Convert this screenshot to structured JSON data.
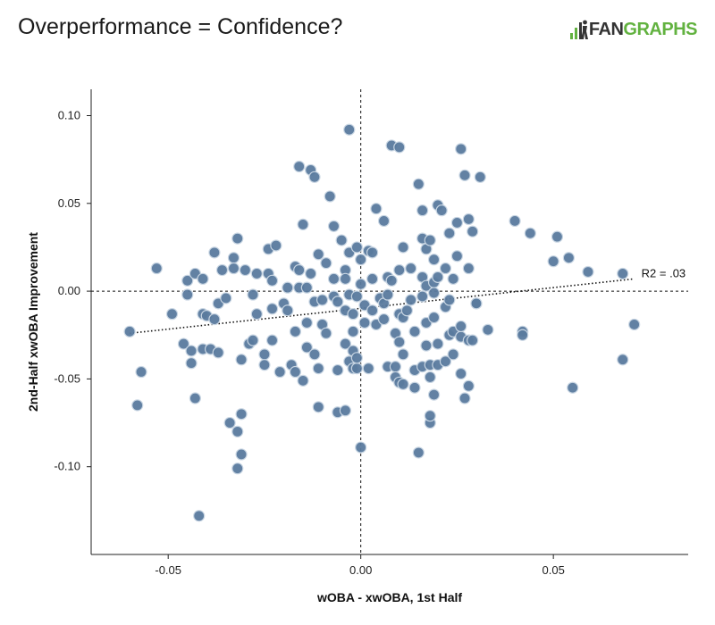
{
  "header": {
    "title": "Overperformance = Confidence?",
    "logo": {
      "prefix": "FAN",
      "suffix": "GRAPHS",
      "prefix_color": "#333333",
      "suffix_color": "#62b240",
      "icon": "fangraphs-bars-icon"
    }
  },
  "colors": {
    "point_fill": "#5a7a9e",
    "point_stroke": "#c9d6e3",
    "axis": "#222222"
  },
  "chart_data": {
    "type": "scatter",
    "title": "Overperformance = Confidence?",
    "xlabel": "wOBA - xwOBA, 1st Half",
    "ylabel": "2nd-Half xwOBA Improvement",
    "xlim": [
      -0.07,
      0.085
    ],
    "ylim": [
      -0.15,
      0.115
    ],
    "xticks": [
      -0.05,
      0.0,
      0.05
    ],
    "xtick_labels": [
      "-0.05",
      "0.00",
      "0.05"
    ],
    "yticks": [
      -0.1,
      -0.05,
      0.0,
      0.05,
      0.1
    ],
    "ytick_labels": [
      "-0.10",
      "-0.05",
      "0.00",
      "0.05",
      "0.10"
    ],
    "grid": false,
    "reference_lines": [
      {
        "axis": "x",
        "value": 0.0,
        "style": "dashed"
      },
      {
        "axis": "y",
        "value": 0.0,
        "style": "dashed"
      }
    ],
    "trendline": {
      "x": [
        -0.06,
        0.071
      ],
      "y": [
        -0.024,
        0.007
      ],
      "style": "dotted",
      "label": "R2 = .03"
    },
    "points": [
      [
        -0.06,
        -0.023
      ],
      [
        -0.057,
        -0.046
      ],
      [
        -0.058,
        -0.065
      ],
      [
        -0.053,
        0.013
      ],
      [
        -0.049,
        -0.013
      ],
      [
        -0.046,
        -0.03
      ],
      [
        -0.045,
        0.006
      ],
      [
        -0.045,
        -0.002
      ],
      [
        -0.044,
        -0.034
      ],
      [
        -0.044,
        -0.041
      ],
      [
        -0.043,
        0.01
      ],
      [
        -0.043,
        -0.061
      ],
      [
        -0.042,
        -0.128
      ],
      [
        -0.041,
        0.007
      ],
      [
        -0.041,
        -0.033
      ],
      [
        -0.041,
        -0.013
      ],
      [
        -0.04,
        -0.014
      ],
      [
        -0.039,
        -0.033
      ],
      [
        -0.038,
        0.022
      ],
      [
        -0.038,
        -0.016
      ],
      [
        -0.037,
        -0.035
      ],
      [
        -0.037,
        -0.007
      ],
      [
        -0.036,
        0.012
      ],
      [
        -0.035,
        -0.004
      ],
      [
        -0.034,
        -0.075
      ],
      [
        -0.033,
        0.019
      ],
      [
        -0.033,
        0.013
      ],
      [
        -0.032,
        0.03
      ],
      [
        -0.032,
        -0.08
      ],
      [
        -0.032,
        -0.101
      ],
      [
        -0.031,
        -0.07
      ],
      [
        -0.031,
        -0.093
      ],
      [
        -0.031,
        -0.039
      ],
      [
        -0.03,
        0.012
      ],
      [
        -0.029,
        -0.03
      ],
      [
        -0.028,
        -0.002
      ],
      [
        -0.028,
        -0.028
      ],
      [
        -0.027,
        0.01
      ],
      [
        -0.027,
        -0.013
      ],
      [
        -0.025,
        -0.036
      ],
      [
        -0.025,
        -0.042
      ],
      [
        -0.024,
        0.024
      ],
      [
        -0.024,
        0.01
      ],
      [
        -0.023,
        0.006
      ],
      [
        -0.023,
        -0.01
      ],
      [
        -0.023,
        -0.028
      ],
      [
        -0.022,
        0.026
      ],
      [
        -0.021,
        -0.046
      ],
      [
        -0.02,
        -0.007
      ],
      [
        -0.019,
        0.002
      ],
      [
        -0.019,
        -0.011
      ],
      [
        -0.018,
        -0.042
      ],
      [
        -0.017,
        0.014
      ],
      [
        -0.017,
        -0.046
      ],
      [
        -0.017,
        -0.023
      ],
      [
        -0.016,
        0.071
      ],
      [
        -0.016,
        0.012
      ],
      [
        -0.016,
        0.002
      ],
      [
        -0.015,
        0.038
      ],
      [
        -0.015,
        -0.051
      ],
      [
        -0.014,
        -0.018
      ],
      [
        -0.014,
        -0.032
      ],
      [
        -0.014,
        0.002
      ],
      [
        -0.013,
        0.069
      ],
      [
        -0.013,
        0.01
      ],
      [
        -0.012,
        0.065
      ],
      [
        -0.012,
        -0.006
      ],
      [
        -0.012,
        -0.036
      ],
      [
        -0.011,
        -0.044
      ],
      [
        -0.011,
        -0.066
      ],
      [
        -0.011,
        0.021
      ],
      [
        -0.01,
        -0.005
      ],
      [
        -0.01,
        -0.019
      ],
      [
        -0.009,
        0.016
      ],
      [
        -0.009,
        -0.024
      ],
      [
        -0.008,
        0.054
      ],
      [
        -0.007,
        0.037
      ],
      [
        -0.007,
        0.007
      ],
      [
        -0.007,
        -0.003
      ],
      [
        -0.006,
        -0.069
      ],
      [
        -0.006,
        -0.006
      ],
      [
        -0.006,
        -0.045
      ],
      [
        -0.005,
        0.029
      ],
      [
        -0.004,
        0.012
      ],
      [
        -0.004,
        0.007
      ],
      [
        -0.004,
        -0.011
      ],
      [
        -0.004,
        -0.068
      ],
      [
        -0.004,
        -0.03
      ],
      [
        -0.003,
        0.092
      ],
      [
        -0.003,
        0.022
      ],
      [
        -0.003,
        -0.002
      ],
      [
        -0.003,
        -0.04
      ],
      [
        -0.002,
        -0.023
      ],
      [
        -0.002,
        -0.034
      ],
      [
        -0.002,
        -0.044
      ],
      [
        -0.002,
        -0.013
      ],
      [
        -0.001,
        -0.044
      ],
      [
        -0.001,
        0.025
      ],
      [
        -0.001,
        -0.003
      ],
      [
        -0.001,
        -0.038
      ],
      [
        0.0,
        -0.089
      ],
      [
        0.0,
        0.018
      ],
      [
        0.0,
        0.004
      ],
      [
        0.001,
        -0.008
      ],
      [
        0.001,
        -0.018
      ],
      [
        0.002,
        0.023
      ],
      [
        0.002,
        -0.044
      ],
      [
        0.003,
        0.022
      ],
      [
        0.003,
        0.007
      ],
      [
        0.003,
        -0.011
      ],
      [
        0.004,
        -0.019
      ],
      [
        0.004,
        0.047
      ],
      [
        0.005,
        -0.004
      ],
      [
        0.006,
        0.04
      ],
      [
        0.006,
        -0.007
      ],
      [
        0.006,
        -0.016
      ],
      [
        0.007,
        0.008
      ],
      [
        0.007,
        -0.002
      ],
      [
        0.007,
        -0.043
      ],
      [
        0.008,
        0.083
      ],
      [
        0.008,
        0.006
      ],
      [
        0.009,
        -0.024
      ],
      [
        0.009,
        -0.043
      ],
      [
        0.009,
        -0.049
      ],
      [
        0.01,
        0.082
      ],
      [
        0.01,
        0.012
      ],
      [
        0.01,
        -0.013
      ],
      [
        0.01,
        -0.029
      ],
      [
        0.01,
        -0.052
      ],
      [
        0.011,
        0.025
      ],
      [
        0.011,
        -0.015
      ],
      [
        0.011,
        -0.036
      ],
      [
        0.011,
        -0.053
      ],
      [
        0.012,
        -0.011
      ],
      [
        0.013,
        0.013
      ],
      [
        0.013,
        -0.005
      ],
      [
        0.014,
        -0.023
      ],
      [
        0.014,
        -0.045
      ],
      [
        0.014,
        -0.055
      ],
      [
        0.015,
        0.061
      ],
      [
        0.015,
        -0.092
      ],
      [
        0.016,
        0.046
      ],
      [
        0.016,
        0.03
      ],
      [
        0.016,
        0.008
      ],
      [
        0.016,
        -0.003
      ],
      [
        0.016,
        -0.043
      ],
      [
        0.017,
        0.024
      ],
      [
        0.017,
        0.003
      ],
      [
        0.017,
        -0.018
      ],
      [
        0.017,
        -0.031
      ],
      [
        0.018,
        0.029
      ],
      [
        0.018,
        -0.075
      ],
      [
        0.018,
        -0.071
      ],
      [
        0.018,
        -0.049
      ],
      [
        0.018,
        -0.042
      ],
      [
        0.019,
        0.005
      ],
      [
        0.019,
        -0.001
      ],
      [
        0.019,
        -0.015
      ],
      [
        0.019,
        0.018
      ],
      [
        0.019,
        -0.059
      ],
      [
        0.02,
        0.008
      ],
      [
        0.02,
        -0.042
      ],
      [
        0.02,
        -0.03
      ],
      [
        0.02,
        0.049
      ],
      [
        0.021,
        0.046
      ],
      [
        0.022,
        0.013
      ],
      [
        0.022,
        -0.009
      ],
      [
        0.022,
        -0.04
      ],
      [
        0.023,
        -0.005
      ],
      [
        0.023,
        -0.025
      ],
      [
        0.023,
        0.033
      ],
      [
        0.024,
        -0.036
      ],
      [
        0.024,
        0.007
      ],
      [
        0.024,
        -0.023
      ],
      [
        0.025,
        0.02
      ],
      [
        0.025,
        0.039
      ],
      [
        0.026,
        -0.026
      ],
      [
        0.026,
        -0.02
      ],
      [
        0.026,
        -0.047
      ],
      [
        0.026,
        0.081
      ],
      [
        0.027,
        0.066
      ],
      [
        0.027,
        -0.061
      ],
      [
        0.028,
        0.041
      ],
      [
        0.028,
        0.013
      ],
      [
        0.028,
        -0.028
      ],
      [
        0.028,
        -0.054
      ],
      [
        0.029,
        0.034
      ],
      [
        0.029,
        -0.028
      ],
      [
        0.03,
        -0.007
      ],
      [
        0.03,
        -0.007
      ],
      [
        0.031,
        0.065
      ],
      [
        0.033,
        -0.022
      ],
      [
        0.04,
        0.04
      ],
      [
        0.042,
        -0.023
      ],
      [
        0.042,
        -0.025
      ],
      [
        0.044,
        0.033
      ],
      [
        0.05,
        0.017
      ],
      [
        0.051,
        0.031
      ],
      [
        0.054,
        0.019
      ],
      [
        0.055,
        -0.055
      ],
      [
        0.059,
        0.011
      ],
      [
        0.068,
        0.01
      ],
      [
        0.068,
        -0.039
      ],
      [
        0.071,
        -0.019
      ]
    ]
  }
}
